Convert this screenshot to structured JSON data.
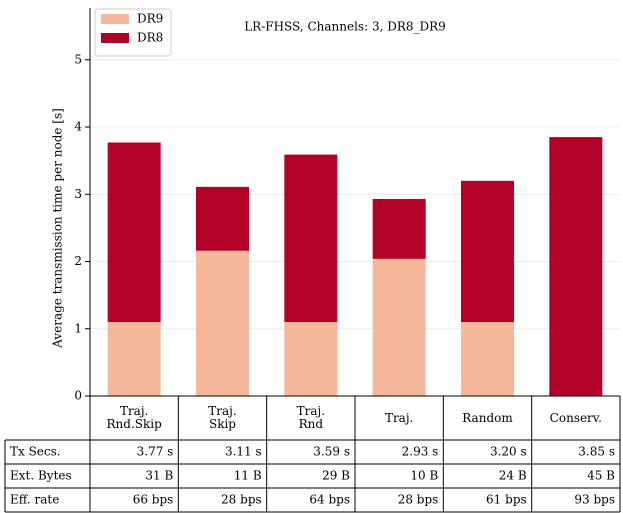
{
  "chart_data": {
    "type": "bar",
    "stacked": true,
    "title": "LR-FHSS, Channels: 3, DR8_DR9",
    "y_label": "Average transmission time per node [s]",
    "categories": [
      "Traj.\nRnd.Skip",
      "Traj.\nSkip",
      "Traj.\nRnd",
      "Traj.",
      "Random",
      "Conserv."
    ],
    "series": [
      {
        "name": "DR9",
        "color": "#f6b89b",
        "values": [
          1.1,
          2.16,
          1.1,
          2.04,
          1.1,
          0
        ]
      },
      {
        "name": "DR8",
        "color": "#b30228",
        "values": [
          2.67,
          0.95,
          2.49,
          0.89,
          2.1,
          3.85
        ]
      }
    ],
    "ylim": [
      0,
      5.77
    ],
    "yticks": [
      0,
      1,
      2,
      3,
      4,
      5
    ],
    "grid": true,
    "legend": "upper left",
    "table": {
      "row_labels": [
        "Tx Secs.",
        "Ext. Bytes",
        "Eff. rate"
      ],
      "cells": [
        [
          "3.77 s",
          "3.11 s",
          "3.59 s",
          "2.93 s",
          "3.20 s",
          "3.85 s"
        ],
        [
          "31 B",
          "11 B",
          "29 B",
          "10 B",
          "24 B",
          "45 B"
        ],
        [
          "66 bps",
          "28 bps",
          "64 bps",
          "28 bps",
          "61 bps",
          "93 bps"
        ]
      ]
    }
  }
}
